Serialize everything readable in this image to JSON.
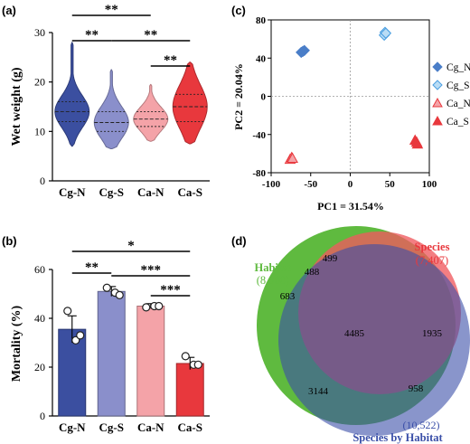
{
  "chart_data": [
    {
      "panel": "(a)",
      "type": "violin",
      "ylabel": "Wet weight (g)",
      "categories": [
        "Cg-N",
        "Cg-S",
        "Ca-N",
        "Ca-S"
      ],
      "ylim": [
        0,
        30
      ],
      "yticks": [
        "0",
        "10",
        "20",
        "30"
      ],
      "colors": [
        "#3b4fa0",
        "#8a8fcb",
        "#f4a3a8",
        "#e8383d"
      ],
      "violins": [
        {
          "min": 7,
          "max": 28,
          "q1": 12,
          "median": 14,
          "q3": 16
        },
        {
          "min": 6.5,
          "max": 22.5,
          "q1": 10,
          "median": 11.8,
          "q3": 14
        },
        {
          "min": 8,
          "max": 19.5,
          "q1": 11,
          "median": 12.5,
          "q3": 14
        },
        {
          "min": 7.5,
          "max": 24,
          "q1": 12,
          "median": 15,
          "q3": 17.5
        }
      ],
      "significance": [
        {
          "from": 0,
          "to": 2,
          "label": "**"
        },
        {
          "from": 0,
          "to": 1,
          "label": "**"
        },
        {
          "from": 1,
          "to": 3,
          "label": "**"
        },
        {
          "from": 2,
          "to": 3,
          "label": "**"
        }
      ]
    },
    {
      "panel": "(b)",
      "type": "bar",
      "ylabel": "Mortality (%)",
      "categories": [
        "Cg-N",
        "Cg-S",
        "Ca-N",
        "Ca-S"
      ],
      "values": [
        35.5,
        51,
        45,
        21.5
      ],
      "errors": [
        5.5,
        2,
        1,
        2.5
      ],
      "points": [
        [
          43,
          31,
          33
        ],
        [
          52.5,
          50.5,
          49.5
        ],
        [
          44.5,
          45,
          45
        ],
        [
          24.5,
          21,
          21
        ]
      ],
      "ylim": [
        0,
        60
      ],
      "yticks": [
        "0",
        "20",
        "40",
        "60"
      ],
      "colors": [
        "#3b4fa0",
        "#8a8fcb",
        "#f4a3a8",
        "#e8383d"
      ],
      "significance": [
        {
          "from": 0,
          "to": 3,
          "label": "*"
        },
        {
          "from": 0,
          "to": 1,
          "label": "**"
        },
        {
          "from": 1,
          "to": 3,
          "label": "***"
        },
        {
          "from": 2,
          "to": 3,
          "label": "***"
        }
      ]
    },
    {
      "panel": "(c)",
      "type": "scatter",
      "xlabel": "PC1 = 31.54%",
      "ylabel": "PC2 = 20.04%",
      "xlim": [
        -100,
        100
      ],
      "ylim": [
        -80,
        80
      ],
      "xticks": [
        "-100",
        "-50",
        "0",
        "50",
        "100"
      ],
      "yticks": [
        "80",
        "40",
        "0",
        "-40",
        "-80"
      ],
      "series": [
        {
          "name": "Cg_N",
          "marker": "diamond",
          "color": "#4a7ec8",
          "fill": "#4a7ec8",
          "points": [
            [
              -62,
              46
            ],
            [
              -58,
              48
            ],
            [
              -60,
              47
            ]
          ]
        },
        {
          "name": "Cg_S",
          "marker": "diamond",
          "color": "#4a9ee0",
          "fill": "#b9dcf5",
          "points": [
            [
              43,
              64
            ],
            [
              44,
              67
            ],
            [
              45,
              66
            ]
          ]
        },
        {
          "name": "Ca_N",
          "marker": "triangle",
          "color": "#e8383d",
          "fill": "#f4a3a8",
          "points": [
            [
              -76,
              -66
            ],
            [
              -74,
              -64
            ],
            [
              -73,
              -65
            ]
          ]
        },
        {
          "name": "Ca_S",
          "marker": "triangle",
          "color": "#e8383d",
          "fill": "#e8383d",
          "points": [
            [
              82,
              -46
            ],
            [
              84,
              -48
            ],
            [
              85,
              -50
            ]
          ]
        }
      ]
    },
    {
      "panel": "(d)",
      "type": "venn",
      "sets": [
        {
          "name": "Species",
          "count": "(7,407)",
          "color": "#e8383d"
        },
        {
          "name": "Habitat",
          "count": "(8,800)",
          "color": "#5fba3f"
        },
        {
          "name": "Species by Habitat",
          "count": "(10,522)",
          "color": "#3a4fa8"
        }
      ],
      "regions": {
        "species_only": "499",
        "habitat_only": "683",
        "species_habitat": "488",
        "all_three": "4485",
        "species_interaction": "1935",
        "habitat_interaction": "3144",
        "interaction_only": "958"
      }
    }
  ]
}
